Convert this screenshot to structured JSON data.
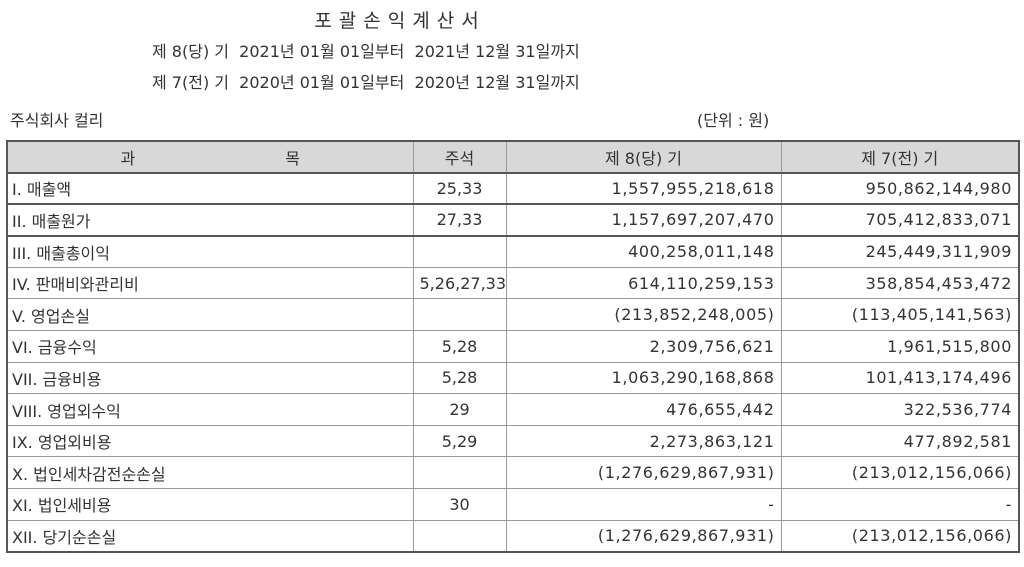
{
  "title": "포괄손익계산서",
  "periods": [
    "제 8(당) 기  2021년 01월 01일부터  2021년 12월 31일까지",
    "제 7(전) 기  2020년 01월 01일부터  2020년 12월 31일까지"
  ],
  "company": "주식회사 컬리",
  "unit": "(단위 : 원)",
  "table": {
    "headers": {
      "account_a": "과",
      "account_b": "목",
      "note": "주석",
      "current": "제 8(당) 기",
      "prior": "제 7(전) 기"
    },
    "rows": [
      {
        "name": "I. 매출액",
        "note": "25,33",
        "current": "1,557,955,218,618",
        "prior": "950,862,144,980"
      },
      {
        "name": "II. 매출원가",
        "note": "27,33",
        "current": "1,157,697,207,470",
        "prior": "705,412,833,071"
      },
      {
        "name": "III. 매출총이익",
        "note": "",
        "current": "400,258,011,148",
        "prior": "245,449,311,909"
      },
      {
        "name": "IV. 판매비와관리비",
        "note": "5,26,27,33",
        "current": "614,110,259,153",
        "prior": "358,854,453,472"
      },
      {
        "name": "V. 영업손실",
        "note": "",
        "current": "(213,852,248,005)",
        "prior": "(113,405,141,563)"
      },
      {
        "name": "VI. 금융수익",
        "note": "5,28",
        "current": "2,309,756,621",
        "prior": "1,961,515,800"
      },
      {
        "name": "VII. 금융비용",
        "note": "5,28",
        "current": "1,063,290,168,868",
        "prior": "101,413,174,496"
      },
      {
        "name": "VIII. 영업외수익",
        "note": "29",
        "current": "476,655,442",
        "prior": "322,536,774"
      },
      {
        "name": "IX. 영업외비용",
        "note": "5,29",
        "current": "2,273,863,121",
        "prior": "477,892,581"
      },
      {
        "name": "X. 법인세차감전순손실",
        "note": "",
        "current": "(1,276,629,867,931)",
        "prior": "(213,012,156,066)"
      },
      {
        "name": "XI. 법인세비용",
        "note": "30",
        "current": "-",
        "prior": "-"
      },
      {
        "name": "XII. 당기순손실",
        "note": "",
        "current": "(1,276,629,867,931)",
        "prior": "(213,012,156,066)"
      }
    ]
  }
}
